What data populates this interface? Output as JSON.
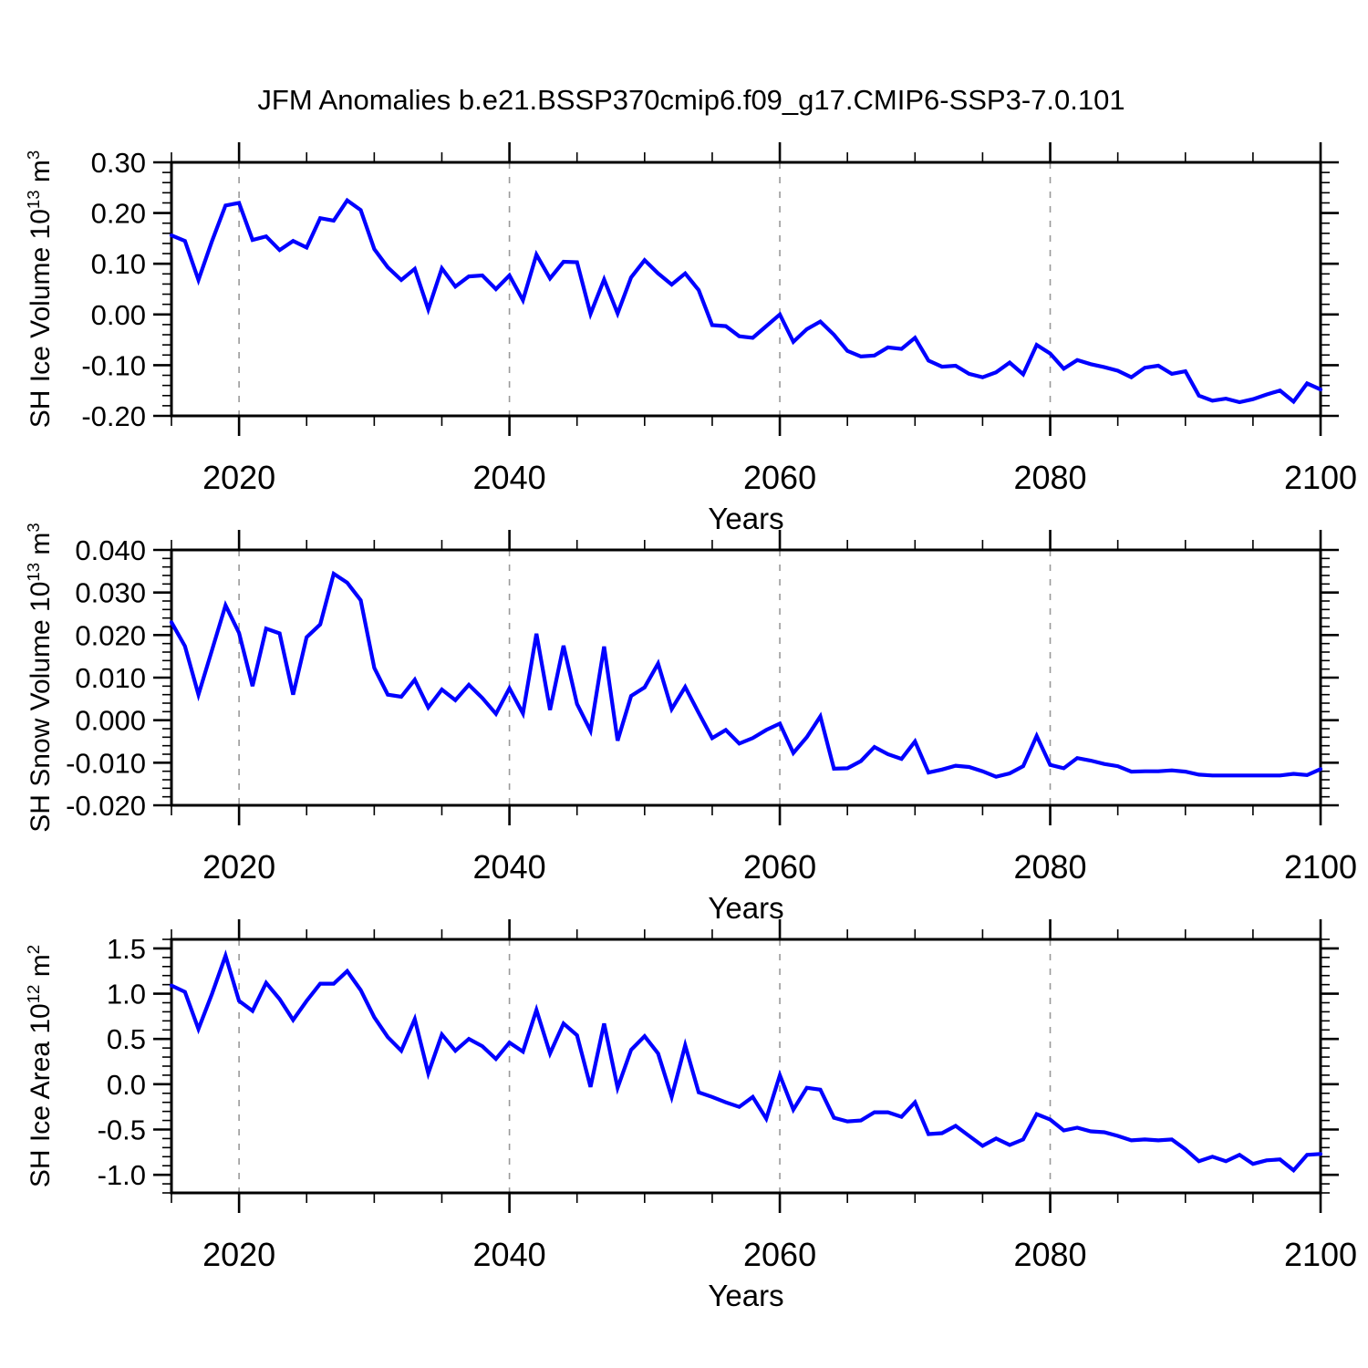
{
  "title": "JFM Anomalies b.e21.BSSP370cmip6.f09_g17.CMIP6-SSP3-7.0.101",
  "figure": {
    "background": "#ffffff",
    "line_color": "#0000ff",
    "grid_color": "#999999",
    "axis_color": "#000000"
  },
  "chart_data": [
    {
      "type": "line",
      "name": "sh-ice-volume-panel",
      "ylabel_plain": "SH Ice Volume 10^13 m^3",
      "ylabel_segments": [
        {
          "text": "SH Ice Volume 10"
        },
        {
          "sup": "13"
        },
        {
          "text": " m"
        },
        {
          "sup": "3"
        }
      ],
      "xlabel": "Years",
      "xlim": [
        2015,
        2100
      ],
      "ylim": [
        -0.2,
        0.3
      ],
      "grid": true,
      "grid_x": [
        2020,
        2040,
        2060,
        2080
      ],
      "xticks": [
        {
          "v": 2020,
          "label": "2020"
        },
        {
          "v": 2040,
          "label": "2040"
        },
        {
          "v": 2060,
          "label": "2060"
        },
        {
          "v": 2080,
          "label": "2080"
        },
        {
          "v": 2100,
          "label": "2100"
        }
      ],
      "xtick_minor_step": 5,
      "yticks": [
        {
          "v": 0.3,
          "label": "0.30"
        },
        {
          "v": 0.2,
          "label": "0.20"
        },
        {
          "v": 0.1,
          "label": "0.10"
        },
        {
          "v": 0.0,
          "label": "0.00"
        },
        {
          "v": -0.1,
          "label": "-0.10"
        },
        {
          "v": -0.2,
          "label": "-0.20"
        }
      ],
      "ytick_minor": 0.02,
      "years": {
        "start": 2015,
        "end": 2100,
        "step": 1
      },
      "values": [
        0.156,
        0.145,
        0.068,
        0.145,
        0.215,
        0.22,
        0.147,
        0.154,
        0.127,
        0.145,
        0.132,
        0.19,
        0.185,
        0.225,
        0.206,
        0.129,
        0.093,
        0.068,
        0.09,
        0.01,
        0.091,
        0.055,
        0.075,
        0.077,
        0.05,
        0.077,
        0.028,
        0.118,
        0.071,
        0.104,
        0.103,
        0.001,
        0.069,
        0.002,
        0.073,
        0.107,
        0.081,
        0.059,
        0.081,
        0.048,
        -0.021,
        -0.023,
        -0.043,
        -0.046,
        -0.023,
        0.0,
        -0.054,
        -0.029,
        -0.014,
        -0.04,
        -0.072,
        -0.083,
        -0.081,
        -0.065,
        -0.068,
        -0.046,
        -0.091,
        -0.103,
        -0.101,
        -0.117,
        -0.124,
        -0.114,
        -0.095,
        -0.118,
        -0.06,
        -0.077,
        -0.107,
        -0.09,
        -0.098,
        -0.104,
        -0.111,
        -0.124,
        -0.105,
        -0.101,
        -0.117,
        -0.112,
        -0.16,
        -0.17,
        -0.166,
        -0.173,
        -0.167,
        -0.158,
        -0.15,
        -0.172,
        -0.136,
        -0.148
      ]
    },
    {
      "type": "line",
      "name": "sh-snow-volume-panel",
      "ylabel_plain": "SH Snow Volume 10^13 m^3",
      "ylabel_segments": [
        {
          "text": "SH Snow Volume 10"
        },
        {
          "sup": "13"
        },
        {
          "text": " m"
        },
        {
          "sup": "3"
        }
      ],
      "xlabel": "Years",
      "xlim": [
        2015,
        2100
      ],
      "ylim": [
        -0.02,
        0.04
      ],
      "grid": true,
      "grid_x": [
        2020,
        2040,
        2060,
        2080
      ],
      "xticks": [
        {
          "v": 2020,
          "label": "2020"
        },
        {
          "v": 2040,
          "label": "2040"
        },
        {
          "v": 2060,
          "label": "2060"
        },
        {
          "v": 2080,
          "label": "2080"
        },
        {
          "v": 2100,
          "label": "2100"
        }
      ],
      "xtick_minor_step": 5,
      "yticks": [
        {
          "v": 0.04,
          "label": "0.040"
        },
        {
          "v": 0.03,
          "label": "0.030"
        },
        {
          "v": 0.02,
          "label": "0.020"
        },
        {
          "v": 0.01,
          "label": "0.010"
        },
        {
          "v": 0.0,
          "label": "0.000"
        },
        {
          "v": -0.01,
          "label": "-0.010"
        },
        {
          "v": -0.02,
          "label": "-0.020"
        }
      ],
      "ytick_minor": 0.002,
      "years": {
        "start": 2015,
        "end": 2100,
        "step": 1
      },
      "values": [
        0.023,
        0.0174,
        0.006,
        0.0165,
        0.027,
        0.0205,
        0.008,
        0.0215,
        0.0204,
        0.006,
        0.0195,
        0.0225,
        0.0344,
        0.0323,
        0.0282,
        0.0123,
        0.006,
        0.0055,
        0.0095,
        0.003,
        0.0072,
        0.0047,
        0.0083,
        0.0052,
        0.0015,
        0.0075,
        0.0016,
        0.0203,
        0.0024,
        0.0175,
        0.0038,
        -0.0025,
        0.0173,
        -0.0048,
        0.0057,
        0.0077,
        0.0133,
        0.0026,
        0.0078,
        0.0017,
        -0.0042,
        -0.0023,
        -0.0055,
        -0.0042,
        -0.0023,
        -0.0008,
        -0.0077,
        -0.004,
        0.0009,
        -0.0114,
        -0.0113,
        -0.0096,
        -0.0063,
        -0.008,
        -0.0091,
        -0.005,
        -0.0123,
        -0.0116,
        -0.0107,
        -0.011,
        -0.012,
        -0.0133,
        -0.0125,
        -0.0108,
        -0.0037,
        -0.0105,
        -0.0113,
        -0.0089,
        -0.0095,
        -0.0103,
        -0.0108,
        -0.0121,
        -0.012,
        -0.012,
        -0.0118,
        -0.0121,
        -0.0128,
        -0.013,
        -0.013,
        -0.013,
        -0.013,
        -0.013,
        -0.013,
        -0.0126,
        -0.0129,
        -0.0115
      ]
    },
    {
      "type": "line",
      "name": "sh-ice-area-panel",
      "ylabel_plain": "SH Ice Area 10^12 m^2",
      "ylabel_segments": [
        {
          "text": "SH Ice Area 10"
        },
        {
          "sup": "12"
        },
        {
          "text": " m"
        },
        {
          "sup": "2"
        }
      ],
      "xlabel": "Years",
      "xlim": [
        2015,
        2100
      ],
      "ylim": [
        -1.2,
        1.6
      ],
      "grid": true,
      "grid_x": [
        2020,
        2040,
        2060,
        2080
      ],
      "xticks": [
        {
          "v": 2020,
          "label": "2020"
        },
        {
          "v": 2040,
          "label": "2040"
        },
        {
          "v": 2060,
          "label": "2060"
        },
        {
          "v": 2080,
          "label": "2080"
        },
        {
          "v": 2100,
          "label": "2100"
        }
      ],
      "xtick_minor_step": 5,
      "yticks": [
        {
          "v": 1.5,
          "label": "1.5"
        },
        {
          "v": 1.0,
          "label": "1.0"
        },
        {
          "v": 0.5,
          "label": "0.5"
        },
        {
          "v": 0.0,
          "label": "0.0"
        },
        {
          "v": -0.5,
          "label": "-0.5"
        },
        {
          "v": -1.0,
          "label": "-1.0"
        }
      ],
      "ytick_minor": 0.1,
      "years": {
        "start": 2015,
        "end": 2100,
        "step": 1
      },
      "values": [
        1.09,
        1.02,
        0.61,
        1.0,
        1.42,
        0.92,
        0.81,
        1.12,
        0.94,
        0.71,
        0.92,
        1.11,
        1.11,
        1.25,
        1.04,
        0.74,
        0.52,
        0.37,
        0.72,
        0.12,
        0.55,
        0.37,
        0.5,
        0.42,
        0.28,
        0.46,
        0.36,
        0.82,
        0.34,
        0.67,
        0.54,
        -0.03,
        0.67,
        -0.04,
        0.38,
        0.53,
        0.34,
        -0.14,
        0.43,
        -0.09,
        -0.14,
        -0.2,
        -0.25,
        -0.14,
        -0.38,
        0.1,
        -0.28,
        -0.04,
        -0.06,
        -0.37,
        -0.41,
        -0.4,
        -0.31,
        -0.31,
        -0.36,
        -0.2,
        -0.55,
        -0.54,
        -0.46,
        -0.57,
        -0.68,
        -0.6,
        -0.67,
        -0.61,
        -0.33,
        -0.39,
        -0.51,
        -0.48,
        -0.52,
        -0.53,
        -0.57,
        -0.62,
        -0.61,
        -0.62,
        -0.61,
        -0.72,
        -0.85,
        -0.8,
        -0.85,
        -0.78,
        -0.88,
        -0.84,
        -0.83,
        -0.95,
        -0.78,
        -0.77
      ]
    }
  ]
}
